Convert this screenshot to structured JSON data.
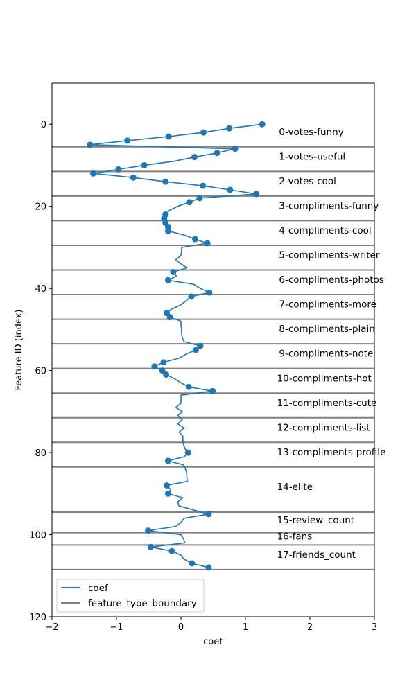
{
  "chart_data": {
    "type": "line",
    "xlabel": "coef",
    "ylabel": "Feature ID (index)",
    "xlim": [
      -2,
      3
    ],
    "ylim": [
      120,
      -10
    ],
    "y_inverted": true,
    "xticks": [
      -2,
      -1,
      0,
      1,
      2,
      3
    ],
    "yticks": [
      0,
      20,
      40,
      60,
      80,
      100,
      120
    ],
    "legend": {
      "placement": "lower-left",
      "entries": [
        "coef",
        "feature_type_boundary"
      ]
    },
    "colors": {
      "coef": "#1f77b4",
      "feature_type_boundary": "#808080"
    },
    "series": [
      {
        "name": "coef",
        "points": [
          [
            1.26,
            0
          ],
          [
            0.75,
            1
          ],
          [
            0.35,
            2
          ],
          [
            -0.19,
            3
          ],
          [
            -0.83,
            4
          ],
          [
            -1.41,
            5
          ],
          [
            0.84,
            6
          ],
          [
            0.56,
            7
          ],
          [
            0.21,
            8
          ],
          [
            -0.1,
            9
          ],
          [
            -0.57,
            10
          ],
          [
            -0.97,
            11
          ],
          [
            -1.36,
            12
          ],
          [
            -0.74,
            13
          ],
          [
            -0.24,
            14
          ],
          [
            0.34,
            15
          ],
          [
            0.76,
            16
          ],
          [
            1.17,
            17
          ],
          [
            0.29,
            18
          ],
          [
            0.13,
            19
          ],
          [
            -0.05,
            20
          ],
          [
            -0.18,
            21
          ],
          [
            -0.24,
            22
          ],
          [
            -0.26,
            23
          ],
          [
            -0.24,
            24
          ],
          [
            -0.2,
            25
          ],
          [
            -0.2,
            26
          ],
          [
            0.05,
            27
          ],
          [
            0.22,
            28
          ],
          [
            0.41,
            29
          ],
          [
            0.01,
            30
          ],
          [
            0.01,
            31
          ],
          [
            0.0,
            32
          ],
          [
            -0.08,
            33
          ],
          [
            0.0,
            34
          ],
          [
            0.09,
            35
          ],
          [
            -0.12,
            36
          ],
          [
            -0.07,
            37
          ],
          [
            -0.2,
            38
          ],
          [
            0.2,
            39
          ],
          [
            0.3,
            40
          ],
          [
            0.44,
            41
          ],
          [
            0.16,
            42
          ],
          [
            0.08,
            43
          ],
          [
            0.0,
            44
          ],
          [
            -0.14,
            45
          ],
          [
            -0.22,
            46
          ],
          [
            -0.17,
            47
          ],
          [
            0.0,
            48
          ],
          [
            0.0,
            49
          ],
          [
            0.01,
            50
          ],
          [
            0.01,
            51
          ],
          [
            0.02,
            52
          ],
          [
            0.05,
            53
          ],
          [
            0.3,
            54
          ],
          [
            0.23,
            55
          ],
          [
            0.08,
            56
          ],
          [
            -0.03,
            57
          ],
          [
            -0.27,
            58
          ],
          [
            -0.41,
            59
          ],
          [
            -0.29,
            60
          ],
          [
            -0.23,
            61
          ],
          [
            -0.1,
            62
          ],
          [
            0.0,
            63
          ],
          [
            0.12,
            64
          ],
          [
            0.49,
            65
          ],
          [
            0.0,
            66
          ],
          [
            0.0,
            67
          ],
          [
            0.0,
            68
          ],
          [
            -0.08,
            69
          ],
          [
            0.02,
            70
          ],
          [
            -0.05,
            71
          ],
          [
            0.02,
            72
          ],
          [
            -0.05,
            73
          ],
          [
            0.05,
            74
          ],
          [
            -0.03,
            75
          ],
          [
            0.03,
            76
          ],
          [
            0.03,
            77
          ],
          [
            0.04,
            78
          ],
          [
            0.06,
            79
          ],
          [
            0.11,
            80
          ],
          [
            0.05,
            81
          ],
          [
            -0.2,
            82
          ],
          [
            0.04,
            83
          ],
          [
            0.07,
            84
          ],
          [
            0.09,
            85
          ],
          [
            0.09,
            86
          ],
          [
            0.1,
            87
          ],
          [
            -0.22,
            88
          ],
          [
            -0.16,
            89
          ],
          [
            -0.2,
            90
          ],
          [
            0.03,
            91
          ],
          [
            -0.05,
            92
          ],
          [
            -0.03,
            93
          ],
          [
            0.2,
            94
          ],
          [
            0.43,
            95
          ],
          [
            0.05,
            96
          ],
          [
            0.0,
            97
          ],
          [
            -0.08,
            98
          ],
          [
            -0.51,
            99
          ],
          [
            0.0,
            100
          ],
          [
            0.04,
            101
          ],
          [
            0.06,
            102
          ],
          [
            -0.47,
            103
          ],
          [
            -0.14,
            104
          ],
          [
            0.0,
            105
          ],
          [
            0.05,
            106
          ],
          [
            0.17,
            107
          ],
          [
            0.43,
            108
          ]
        ],
        "markers_at": [
          0,
          1,
          2,
          3,
          4,
          5,
          6,
          7,
          8,
          10,
          11,
          12,
          13,
          14,
          15,
          16,
          17,
          18,
          19,
          22,
          23,
          24,
          25,
          26,
          28,
          29,
          36,
          38,
          41,
          42,
          46,
          47,
          54,
          55,
          58,
          59,
          60,
          61,
          64,
          65,
          80,
          82,
          88,
          90,
          95,
          99,
          103,
          104,
          107,
          108
        ]
      },
      {
        "name": "feature_type_boundary",
        "y_values": [
          5.5,
          11.5,
          17.5,
          23.5,
          29.5,
          35.5,
          41.5,
          47.5,
          53.5,
          59.5,
          65.5,
          71.5,
          77.5,
          83.5,
          94.5,
          99.5,
          102.5,
          108.5
        ]
      }
    ],
    "annotations": [
      {
        "text": "0-votes-funny",
        "x": 1.52,
        "y": 1.8
      },
      {
        "text": "1-votes-useful",
        "x": 1.52,
        "y": 7.8
      },
      {
        "text": "2-votes-cool",
        "x": 1.52,
        "y": 13.8
      },
      {
        "text": "3-compliments-funny",
        "x": 1.52,
        "y": 19.8
      },
      {
        "text": "4-compliments-cool",
        "x": 1.52,
        "y": 25.8
      },
      {
        "text": "5-compliments-writer",
        "x": 1.52,
        "y": 31.8
      },
      {
        "text": "6-compliments-photos",
        "x": 1.52,
        "y": 37.8
      },
      {
        "text": "7-compliments-more",
        "x": 1.52,
        "y": 43.8
      },
      {
        "text": "8-compliments-plain",
        "x": 1.52,
        "y": 49.8
      },
      {
        "text": "9-compliments-note",
        "x": 1.52,
        "y": 55.8
      },
      {
        "text": "10-compliments-hot",
        "x": 1.49,
        "y": 61.8
      },
      {
        "text": "11-compliments-cute",
        "x": 1.49,
        "y": 67.8
      },
      {
        "text": "12-compliments-list",
        "x": 1.49,
        "y": 73.8
      },
      {
        "text": "13-compliments-profile",
        "x": 1.49,
        "y": 79.8
      },
      {
        "text": "14-elite",
        "x": 1.49,
        "y": 88.3
      },
      {
        "text": "15-review_count",
        "x": 1.49,
        "y": 96.4
      },
      {
        "text": "16-fans",
        "x": 1.49,
        "y": 100.3
      },
      {
        "text": "17-friends_count",
        "x": 1.49,
        "y": 104.8
      }
    ]
  }
}
